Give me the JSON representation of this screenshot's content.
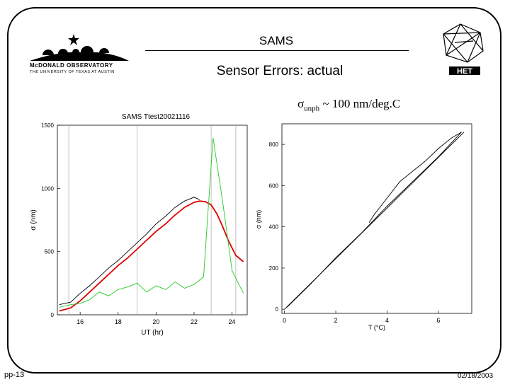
{
  "slide": {
    "title": "SAMS",
    "subtitle": "Sensor Errors: actual",
    "formula_prefix": "σ",
    "formula_sub": "unph",
    "formula_rest": " ~ 100 nm/deg.C",
    "footer_left": "pp-13",
    "footer_right": "02/18/2003"
  },
  "logos": {
    "left_line1": "McDONALD OBSERVATORY",
    "left_line2": "THE UNIVERSITY OF TEXAS AT AUSTIN",
    "right_text": "HET"
  },
  "chart_data": [
    {
      "type": "line",
      "title": "SAMS Ttest20021116",
      "xlabel": "UT (hr)",
      "ylabel": "σ (nm)",
      "xlim": [
        14.8,
        24.8
      ],
      "ylim": [
        0,
        1500
      ],
      "xticks": [
        "16",
        "18",
        "20",
        "22",
        "24"
      ],
      "yticks": [
        "0",
        "500",
        "1000",
        "1500"
      ],
      "colors": {
        "measured": "#000000",
        "model": "#e00000",
        "residual": "#22cc22"
      },
      "series": [
        {
          "values_x": [
            14.9,
            15.5,
            16.0,
            16.5,
            17.0,
            17.5,
            18.0,
            18.5,
            19.0,
            19.5,
            20.0,
            20.5,
            21.0,
            21.5,
            22.0,
            22.3,
            22.6,
            22.9,
            23.2,
            23.5,
            23.8,
            24.2,
            24.6
          ],
          "values_y": [
            30,
            55,
            110,
            180,
            250,
            320,
            390,
            450,
            520,
            590,
            660,
            720,
            790,
            850,
            890,
            900,
            895,
            870,
            800,
            700,
            590,
            470,
            420
          ]
        },
        {
          "values_x": [
            14.9,
            15.5,
            16.0,
            16.5,
            17.0,
            17.5,
            18.0,
            18.5,
            19.0,
            19.5,
            20.0,
            20.5,
            21.0,
            21.5,
            22.0,
            22.3
          ],
          "values_y": [
            80,
            100,
            170,
            230,
            300,
            370,
            430,
            500,
            570,
            640,
            720,
            780,
            850,
            900,
            930,
            910
          ]
        },
        {
          "values_x": [
            14.9,
            15.5,
            16.0,
            16.5,
            17.0,
            17.5,
            18.0,
            18.5,
            19.0,
            19.5,
            20.0,
            20.5,
            21.0,
            21.5,
            22.0,
            22.5,
            23.0,
            23.5,
            24.0,
            24.6
          ],
          "values_y": [
            60,
            80,
            90,
            120,
            180,
            150,
            200,
            220,
            250,
            180,
            230,
            200,
            260,
            210,
            240,
            300,
            1400,
            900,
            350,
            170
          ]
        }
      ]
    },
    {
      "type": "line",
      "xlabel": "T (°C)",
      "ylabel": "σ (nm)",
      "xlim": [
        -0.1,
        7.3
      ],
      "ylim": [
        -20,
        900
      ],
      "xticks": [
        "0",
        "2",
        "4",
        "6"
      ],
      "yticks": [
        "0",
        "200",
        "400",
        "600",
        "800"
      ],
      "series": [
        {
          "values_x": [
            0.0,
            7.0
          ],
          "values_y": [
            0,
            860
          ]
        },
        {
          "values_x": [
            3.3,
            3.5,
            4.0,
            4.5,
            5.0,
            5.5,
            6.0,
            6.5,
            6.9
          ],
          "values_y": [
            420,
            460,
            540,
            620,
            670,
            720,
            780,
            830,
            860
          ]
        },
        {
          "values_x": [
            0.1,
            1.0,
            2.0,
            3.0,
            4.0,
            5.0,
            6.0,
            6.9
          ],
          "values_y": [
            10,
            120,
            250,
            370,
            500,
            620,
            740,
            860
          ]
        }
      ]
    }
  ]
}
